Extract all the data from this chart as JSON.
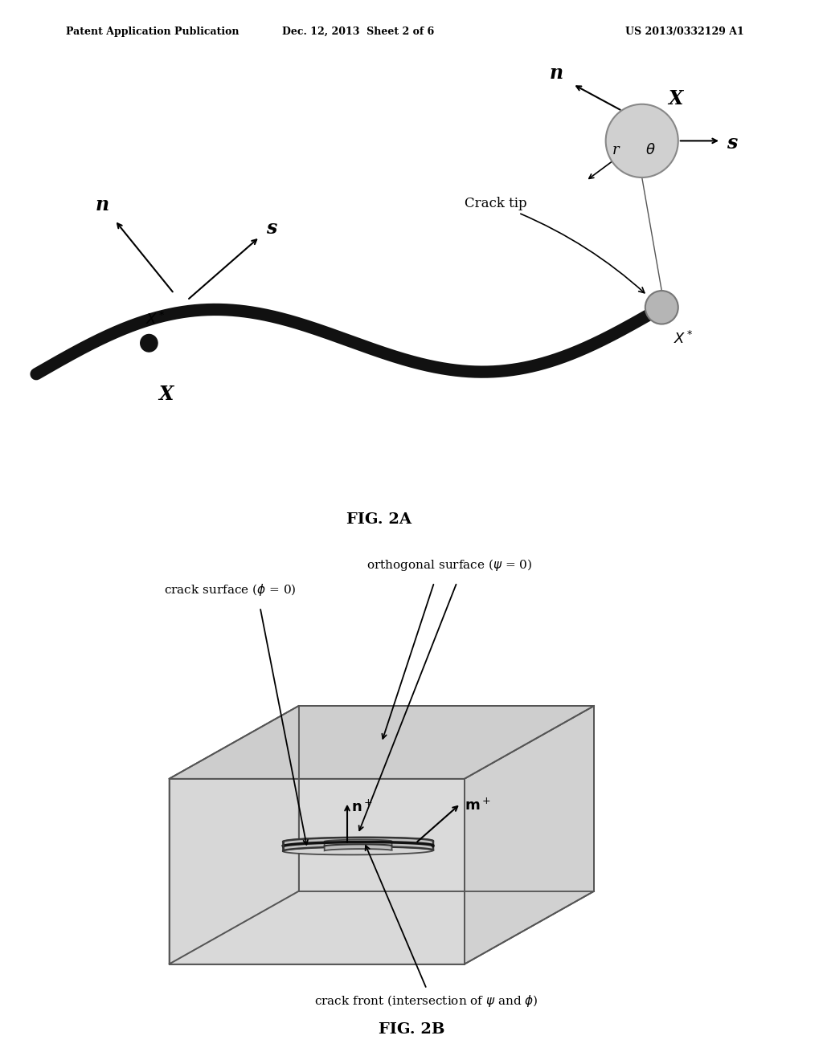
{
  "background_color": "#ffffff",
  "header_left": "Patent Application Publication",
  "header_center": "Dec. 12, 2013  Sheet 2 of 6",
  "header_right": "US 2013/0332129 A1",
  "fig2a_label": "FIG. 2A",
  "fig2b_label": "FIG. 2B",
  "text_color": "#000000",
  "crack_color": "#1a1a1a",
  "box_face_color": "#d8d8d8",
  "box_edge_color": "#555555",
  "crack_surface_color": "#c8c8c8"
}
